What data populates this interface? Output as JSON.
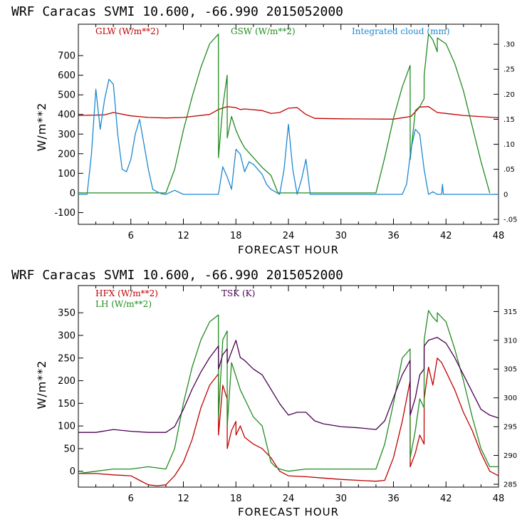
{
  "chart_data": [
    {
      "type": "line",
      "title": "WRF  Caracas SVMI  10.600, -66.990  2015052000",
      "xlabel": "FORECAST HOUR",
      "ylabel": "W/m**2",
      "xlim": [
        0,
        48
      ],
      "ylim": [
        -160,
        860
      ],
      "y2lim": [
        -0.06,
        0.34
      ],
      "xticks": [
        6,
        12,
        18,
        24,
        30,
        36,
        42,
        48
      ],
      "yticks": [
        -100,
        0,
        100,
        200,
        300,
        400,
        500,
        600,
        700
      ],
      "y2ticks": [
        "-.05",
        "0",
        ".05",
        ".10",
        ".15",
        ".20",
        ".25",
        ".30"
      ],
      "y2tick_values": [
        -0.05,
        0,
        0.05,
        0.1,
        0.15,
        0.2,
        0.25,
        0.3
      ],
      "legend": [
        {
          "label": "GLW (W/m**2)",
          "color": "#c00000"
        },
        {
          "label": "GSW (W/m**2)",
          "color": "#228b22"
        },
        {
          "label": "Integrated cloud (mm)",
          "color": "#1e88d0"
        }
      ],
      "series": [
        {
          "name": "GLW (W/m**2)",
          "color": "#c00000",
          "axis": "left",
          "x": [
            0,
            3,
            4,
            6,
            8,
            10,
            12,
            15,
            16,
            17,
            18,
            18.5,
            19,
            21,
            22,
            23,
            24,
            25,
            26,
            27,
            30,
            36,
            38,
            39,
            40,
            41,
            42,
            44,
            48
          ],
          "y": [
            395,
            398,
            410,
            393,
            385,
            382,
            385,
            400,
            425,
            440,
            435,
            425,
            428,
            420,
            405,
            410,
            432,
            435,
            400,
            380,
            378,
            376,
            390,
            438,
            440,
            410,
            405,
            395,
            383
          ]
        },
        {
          "name": "GSW (W/m**2)",
          "color": "#228b22",
          "axis": "left",
          "x": [
            0,
            10,
            11,
            12,
            13,
            14,
            15,
            16,
            16.01,
            16.5,
            17,
            17.01,
            17.5,
            18,
            18.5,
            19,
            20,
            21,
            22,
            22.8,
            34,
            35,
            36,
            37,
            37.9,
            37.91,
            38.5,
            39,
            39.5,
            39.51,
            40,
            40.5,
            41,
            41.01,
            42,
            43,
            44,
            45,
            46,
            47
          ],
          "y": [
            0,
            0,
            120,
            320,
            490,
            640,
            760,
            810,
            180,
            440,
            600,
            280,
            390,
            320,
            270,
            230,
            180,
            130,
            90,
            0,
            0,
            180,
            380,
            540,
            650,
            170,
            420,
            440,
            480,
            600,
            810,
            780,
            720,
            790,
            760,
            660,
            520,
            340,
            160,
            0
          ]
        },
        {
          "name": "Integrated cloud (mm)",
          "color": "#1e88d0",
          "axis": "right",
          "x": [
            0,
            1,
            1.5,
            2,
            2.5,
            3,
            3.5,
            4,
            4.5,
            5,
            5.5,
            6,
            6.5,
            7,
            7.5,
            8,
            8.5,
            9,
            9.5,
            10,
            11,
            12,
            15,
            16,
            16.5,
            17,
            17.5,
            18,
            18.5,
            19,
            19.5,
            20,
            20.5,
            21,
            21.5,
            22,
            22.5,
            23,
            23.5,
            24,
            24.5,
            25,
            25.5,
            26,
            26.5,
            27,
            37,
            37.5,
            38,
            38.5,
            39,
            39.5,
            40,
            40.5,
            41,
            41.5,
            41.6,
            41.7,
            42,
            48
          ],
          "y": [
            0,
            0,
            0.08,
            0.21,
            0.13,
            0.19,
            0.23,
            0.22,
            0.12,
            0.05,
            0.045,
            0.07,
            0.12,
            0.15,
            0.1,
            0.05,
            0.01,
            0.005,
            0.001,
            0,
            0.008,
            0,
            0,
            0,
            0.055,
            0.035,
            0.01,
            0.09,
            0.08,
            0.045,
            0.065,
            0.06,
            0.05,
            0.04,
            0.02,
            0.01,
            0.005,
            0,
            0.05,
            0.14,
            0.05,
            0,
            0.03,
            0.07,
            0,
            0,
            0,
            0.02,
            0.09,
            0.13,
            0.12,
            0.05,
            0,
            0.005,
            0,
            0,
            0.02,
            0,
            0,
            0
          ]
        }
      ]
    },
    {
      "type": "line",
      "title": "WRF  Caracas SVMI  10.600, -66.990  2015052000",
      "xlabel": "FORECAST HOUR",
      "ylabel": "W/m**2",
      "xlim": [
        0,
        48
      ],
      "ylim": [
        -35,
        410
      ],
      "y2lim": [
        284.5,
        319.5
      ],
      "xticks": [
        6,
        12,
        18,
        24,
        30,
        36,
        42,
        48
      ],
      "yticks": [
        0,
        50,
        100,
        150,
        200,
        250,
        300,
        350
      ],
      "y2ticks": [
        "285",
        "290",
        "295",
        "300",
        "305",
        "310",
        "315"
      ],
      "y2tick_values": [
        285,
        290,
        295,
        300,
        305,
        310,
        315
      ],
      "legend": [
        {
          "label": "HFX (W/m**2)",
          "color": "#c00000"
        },
        {
          "label": "LH (W/m**2)",
          "color": "#228b22"
        },
        {
          "label": "TSK (K)",
          "color": "#4b0055"
        }
      ],
      "series": [
        {
          "name": "HFX (W/m**2)",
          "color": "#c00000",
          "axis": "left",
          "x": [
            0,
            2,
            4,
            6,
            7,
            8,
            9,
            10,
            11,
            12,
            13,
            14,
            15,
            16,
            16.01,
            16.5,
            17,
            17.01,
            17.5,
            18,
            18.01,
            18.5,
            19,
            20,
            21,
            22,
            23,
            24,
            26,
            28,
            30,
            32,
            34,
            35,
            36,
            37,
            37.9,
            37.91,
            38.5,
            39,
            39.5,
            39.51,
            40,
            40.5,
            41,
            41.5,
            42,
            43,
            44,
            45,
            46,
            47,
            48
          ],
          "y": [
            -5,
            -5,
            -8,
            -10,
            -20,
            -30,
            -32,
            -30,
            -10,
            20,
            70,
            140,
            190,
            215,
            80,
            190,
            160,
            50,
            90,
            110,
            80,
            100,
            75,
            60,
            50,
            30,
            0,
            -10,
            -12,
            -15,
            -18,
            -20,
            -22,
            -20,
            30,
            110,
            200,
            10,
            40,
            80,
            60,
            160,
            230,
            190,
            250,
            240,
            220,
            180,
            130,
            90,
            40,
            0,
            -10
          ]
        },
        {
          "name": "LH (W/m**2)",
          "color": "#228b22",
          "axis": "left",
          "x": [
            0,
            2,
            4,
            6,
            8,
            10,
            11,
            12,
            13,
            14,
            15,
            16,
            16.01,
            16.5,
            17,
            17.01,
            17.5,
            18,
            18.5,
            19,
            20,
            21,
            21.5,
            22,
            22.5,
            23,
            24,
            26,
            28,
            30,
            32,
            34,
            35,
            36,
            37,
            37.9,
            37.91,
            38.5,
            39,
            39.5,
            39.51,
            40,
            40.5,
            41,
            41.01,
            42,
            43,
            44,
            45,
            46,
            47,
            48
          ],
          "y": [
            -5,
            0,
            5,
            5,
            10,
            5,
            50,
            150,
            230,
            290,
            330,
            345,
            120,
            290,
            310,
            100,
            240,
            210,
            180,
            160,
            120,
            100,
            60,
            20,
            10,
            5,
            0,
            5,
            5,
            5,
            5,
            5,
            60,
            150,
            250,
            270,
            30,
            90,
            160,
            140,
            290,
            355,
            340,
            330,
            350,
            330,
            270,
            200,
            120,
            50,
            10,
            10
          ]
        },
        {
          "name": "TSK (K)",
          "color": "#4b0055",
          "axis": "right",
          "x": [
            0,
            2,
            4,
            6,
            8,
            10,
            11,
            12,
            13,
            14,
            15,
            16,
            16.01,
            16.5,
            17,
            17.01,
            17.5,
            18,
            18.5,
            19,
            20,
            21,
            22,
            23,
            24,
            25,
            26,
            27,
            28,
            30,
            32,
            34,
            35,
            36,
            37,
            37.9,
            37.91,
            38.5,
            39,
            39.5,
            39.51,
            40,
            41,
            42,
            43,
            44,
            45,
            46,
            47,
            48
          ],
          "y": [
            294,
            294,
            294.5,
            294.2,
            294,
            294,
            295,
            298,
            301.5,
            304.5,
            307,
            309,
            305,
            307.5,
            308.5,
            306,
            308,
            310,
            307,
            306.5,
            305,
            304,
            301.5,
            299,
            297,
            297.5,
            297.5,
            296,
            295.5,
            295,
            294.8,
            294.5,
            296,
            300,
            304,
            306.5,
            297,
            300,
            304,
            305,
            309,
            310,
            310.5,
            309.5,
            307,
            304,
            301,
            298,
            297,
            296.5
          ]
        }
      ]
    }
  ]
}
